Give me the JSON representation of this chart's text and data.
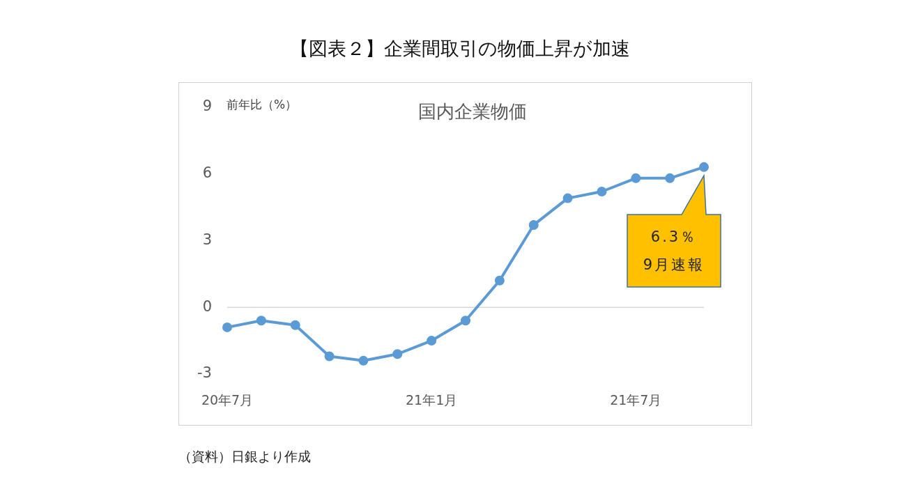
{
  "chart_data": {
    "type": "line",
    "title": "【図表２】企業間取引の物価上昇が加速",
    "subtitle": "国内企業物価",
    "ylabel": "前年比（%）",
    "categories": [
      "20年7月",
      null,
      null,
      null,
      null,
      null,
      "21年1月",
      null,
      null,
      null,
      null,
      null,
      "21年7月",
      null,
      null
    ],
    "series": [
      {
        "color": "#5b9bd5",
        "values": [
          -0.9,
          -0.6,
          -0.8,
          -2.2,
          -2.4,
          -2.1,
          -1.5,
          -0.6,
          1.2,
          3.7,
          4.9,
          5.2,
          5.8,
          5.8,
          6.3
        ]
      }
    ],
    "ref_lines": [
      {
        "axis": "y",
        "value": 0,
        "color": "#d9d9d9"
      }
    ],
    "ylim": [
      -3,
      9
    ],
    "yticks": [
      -3,
      0,
      3,
      6,
      9
    ],
    "grid": false,
    "legend": false,
    "marker": "circle",
    "line_style": "solid",
    "annotations": [
      "6.3％\n9月速報",
      "（資料）日銀より作成"
    ]
  }
}
